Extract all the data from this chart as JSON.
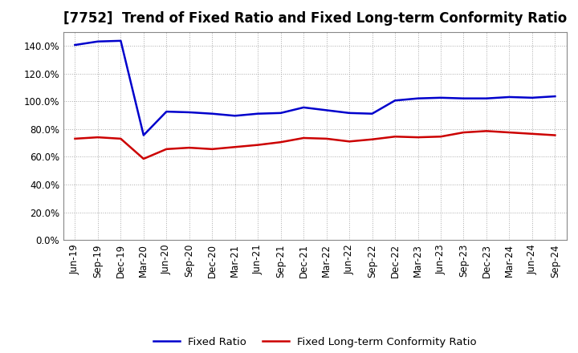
{
  "title": "[7752]  Trend of Fixed Ratio and Fixed Long-term Conformity Ratio",
  "x_labels": [
    "Jun-19",
    "Sep-19",
    "Dec-19",
    "Mar-20",
    "Jun-20",
    "Sep-20",
    "Dec-20",
    "Mar-21",
    "Jun-21",
    "Sep-21",
    "Dec-21",
    "Mar-22",
    "Jun-22",
    "Sep-22",
    "Dec-22",
    "Mar-23",
    "Jun-23",
    "Sep-23",
    "Dec-23",
    "Mar-24",
    "Jun-24",
    "Sep-24"
  ],
  "fixed_ratio": [
    140.5,
    143.0,
    143.5,
    75.5,
    92.5,
    92.0,
    91.0,
    89.5,
    91.0,
    91.5,
    95.5,
    93.5,
    91.5,
    91.0,
    100.5,
    102.0,
    102.5,
    102.0,
    102.0,
    103.0,
    102.5,
    103.5
  ],
  "fixed_lt_ratio": [
    73.0,
    74.0,
    73.0,
    58.5,
    65.5,
    66.5,
    65.5,
    67.0,
    68.5,
    70.5,
    73.5,
    73.0,
    71.0,
    72.5,
    74.5,
    74.0,
    74.5,
    77.5,
    78.5,
    77.5,
    76.5,
    75.5
  ],
  "fixed_ratio_color": "#0000CC",
  "fixed_lt_ratio_color": "#CC0000",
  "ylim": [
    0,
    150
  ],
  "yticks": [
    0,
    20,
    40,
    60,
    80,
    100,
    120,
    140
  ],
  "grid_color": "#AAAAAA",
  "bg_color": "#FFFFFF",
  "plot_bg_color": "#FFFFFF",
  "legend_fixed": "Fixed Ratio",
  "legend_lt": "Fixed Long-term Conformity Ratio",
  "title_fontsize": 12,
  "axis_fontsize": 8.5,
  "legend_fontsize": 9.5,
  "line_width": 1.8
}
